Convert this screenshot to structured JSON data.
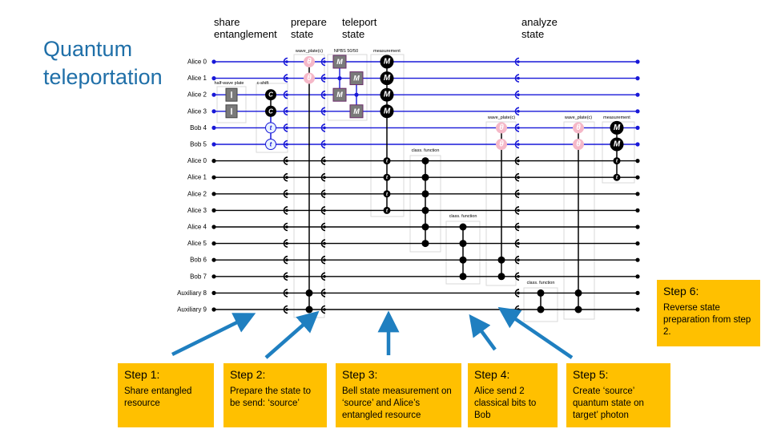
{
  "title": {
    "line1": "Quantum",
    "line2": "teleportation"
  },
  "phases": [
    {
      "line1": "share",
      "line2": "entanglement"
    },
    {
      "line1": "prepare",
      "line2": "state"
    },
    {
      "line1": "teleport",
      "line2": "state"
    },
    {
      "line1": "analyze",
      "line2": "state"
    }
  ],
  "wires": [
    {
      "label": "Alice 0",
      "kind": "quantum"
    },
    {
      "label": "Alice 1",
      "kind": "quantum"
    },
    {
      "label": "Alice 2",
      "kind": "quantum"
    },
    {
      "label": "Alice 3",
      "kind": "quantum"
    },
    {
      "label": "Bob 4",
      "kind": "quantum"
    },
    {
      "label": "Bob 5",
      "kind": "quantum"
    },
    {
      "label": "Alice 0",
      "kind": "classical"
    },
    {
      "label": "Alice 1",
      "kind": "classical"
    },
    {
      "label": "Alice 2",
      "kind": "classical"
    },
    {
      "label": "Alice 3",
      "kind": "classical"
    },
    {
      "label": "Alice 4",
      "kind": "classical"
    },
    {
      "label": "Alice 5",
      "kind": "classical"
    },
    {
      "label": "Bob 6",
      "kind": "classical"
    },
    {
      "label": "Bob 7",
      "kind": "classical"
    },
    {
      "label": "Auxiliary 8",
      "kind": "classical"
    },
    {
      "label": "Auxiliary 9",
      "kind": "classical"
    }
  ],
  "gate_labels": {
    "half_wave_plate": "half-wave plate",
    "c_shift": "c-shift",
    "wave_plate": "wave_plate(c)",
    "npbs": "NPBS 50/50",
    "measurement": "measurement",
    "class_function": "class. function"
  },
  "gate_symbols": {
    "theta": "θ",
    "measure": "M",
    "control": "C",
    "target": "t"
  },
  "colors": {
    "quantum_wire": "#1818d8",
    "classical_wire": "#000000",
    "wave_plate": "#f5b8c8",
    "npbs_box": "#7a7a7a",
    "title": "#1f6fa8",
    "step_box": "#ffc000",
    "arrow": "#1f7fc0"
  },
  "steps": [
    {
      "title": "Step 1:",
      "text": "Share entangled resource"
    },
    {
      "title": "Step 2:",
      "text": "Prepare the state to be send: ‘source’"
    },
    {
      "title": "Step 3:",
      "text": "Bell state measurement on ‘source’ and Alice’s entangled resource"
    },
    {
      "title": "Step 4:",
      "text": "Alice send 2 classical bits to Bob"
    },
    {
      "title": "Step 5:",
      "text": "Create ‘source’ quantum state on target’ photon"
    },
    {
      "title": "Step 6:",
      "text": "Reverse state preparation from step 2."
    }
  ]
}
